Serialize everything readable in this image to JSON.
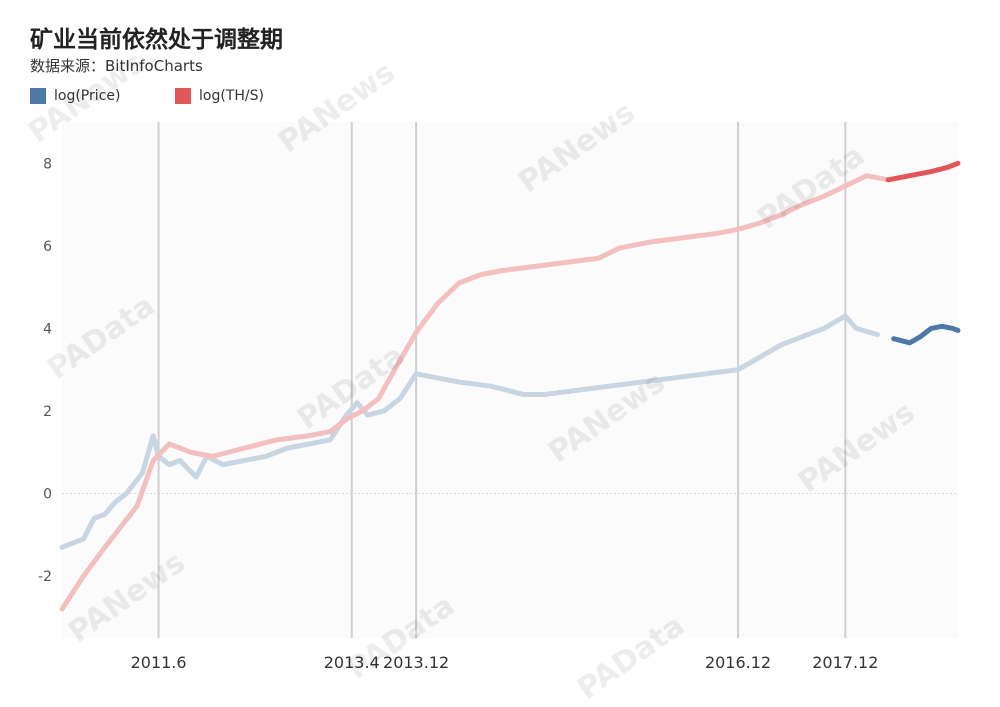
{
  "title": "矿业当前依然处于调整期",
  "subtitle": "数据来源：BitInfoCharts",
  "watermarks": [
    "PANews",
    "PAData"
  ],
  "colors": {
    "price_light": "#c8d5e2",
    "price_dark": "#4e79a7",
    "hash_light": "#f3c0bf",
    "hash_dark": "#e15759",
    "grid": "#cfcfcf",
    "plot_bg": "#fbfbfb"
  },
  "chart_data": {
    "type": "line",
    "title": "矿业当前依然处于调整期",
    "xlabel": "",
    "ylabel": "",
    "x_range": [
      2010.6,
      2018.95
    ],
    "ylim": [
      -3.5,
      9
    ],
    "yticks": [
      -2,
      0,
      2,
      4,
      6,
      8
    ],
    "grid": false,
    "legend_position": "top-left",
    "highlight_from": 2018.3,
    "x_markers": [
      {
        "label": "2011.6",
        "x": 2011.5
      },
      {
        "label": "2013.4",
        "x": 2013.3
      },
      {
        "label": "2013.12",
        "x": 2013.9
      },
      {
        "label": "2016.12",
        "x": 2016.9
      },
      {
        "label": "2017.12",
        "x": 2017.9
      }
    ],
    "series": [
      {
        "name": "log(Price)",
        "x": [
          2010.6,
          2010.8,
          2010.9,
          2011.0,
          2011.1,
          2011.2,
          2011.35,
          2011.45,
          2011.5,
          2011.6,
          2011.7,
          2011.85,
          2011.95,
          2012.1,
          2012.3,
          2012.5,
          2012.7,
          2012.9,
          2013.1,
          2013.25,
          2013.35,
          2013.45,
          2013.6,
          2013.75,
          2013.9,
          2014.1,
          2014.3,
          2014.6,
          2014.9,
          2015.1,
          2015.4,
          2015.7,
          2016.0,
          2016.3,
          2016.6,
          2016.9,
          2017.1,
          2017.3,
          2017.5,
          2017.7,
          2017.9,
          2018.0,
          2018.2,
          2018.35,
          2018.5,
          2018.6,
          2018.7,
          2018.8,
          2018.9,
          2018.95
        ],
        "values": [
          -1.3,
          -1.1,
          -0.6,
          -0.5,
          -0.2,
          0.0,
          0.5,
          1.4,
          0.9,
          0.7,
          0.8,
          0.4,
          0.9,
          0.7,
          0.8,
          0.9,
          1.1,
          1.2,
          1.3,
          1.9,
          2.2,
          1.9,
          2.0,
          2.3,
          2.9,
          2.8,
          2.7,
          2.6,
          2.4,
          2.4,
          2.5,
          2.6,
          2.7,
          2.8,
          2.9,
          3.0,
          3.3,
          3.6,
          3.8,
          4.0,
          4.3,
          4.0,
          3.85,
          3.75,
          3.65,
          3.8,
          4.0,
          4.05,
          4.0,
          3.95
        ]
      },
      {
        "name": "log(TH/S)",
        "x": [
          2010.6,
          2010.8,
          2011.0,
          2011.15,
          2011.3,
          2011.45,
          2011.6,
          2011.8,
          2012.0,
          2012.3,
          2012.6,
          2012.9,
          2013.1,
          2013.25,
          2013.4,
          2013.55,
          2013.7,
          2013.9,
          2014.1,
          2014.3,
          2014.5,
          2014.7,
          2015.0,
          2015.3,
          2015.6,
          2015.8,
          2016.1,
          2016.4,
          2016.7,
          2016.9,
          2017.1,
          2017.3,
          2017.5,
          2017.7,
          2017.9,
          2018.1,
          2018.3,
          2018.5,
          2018.7,
          2018.85,
          2018.95
        ],
        "values": [
          -2.8,
          -2.0,
          -1.3,
          -0.8,
          -0.3,
          0.8,
          1.2,
          1.0,
          0.9,
          1.1,
          1.3,
          1.4,
          1.5,
          1.8,
          2.0,
          2.3,
          3.0,
          3.9,
          4.6,
          5.1,
          5.3,
          5.4,
          5.5,
          5.6,
          5.7,
          5.95,
          6.1,
          6.2,
          6.3,
          6.4,
          6.55,
          6.75,
          7.0,
          7.2,
          7.45,
          7.7,
          7.6,
          7.7,
          7.8,
          7.9,
          8.0
        ]
      }
    ]
  }
}
